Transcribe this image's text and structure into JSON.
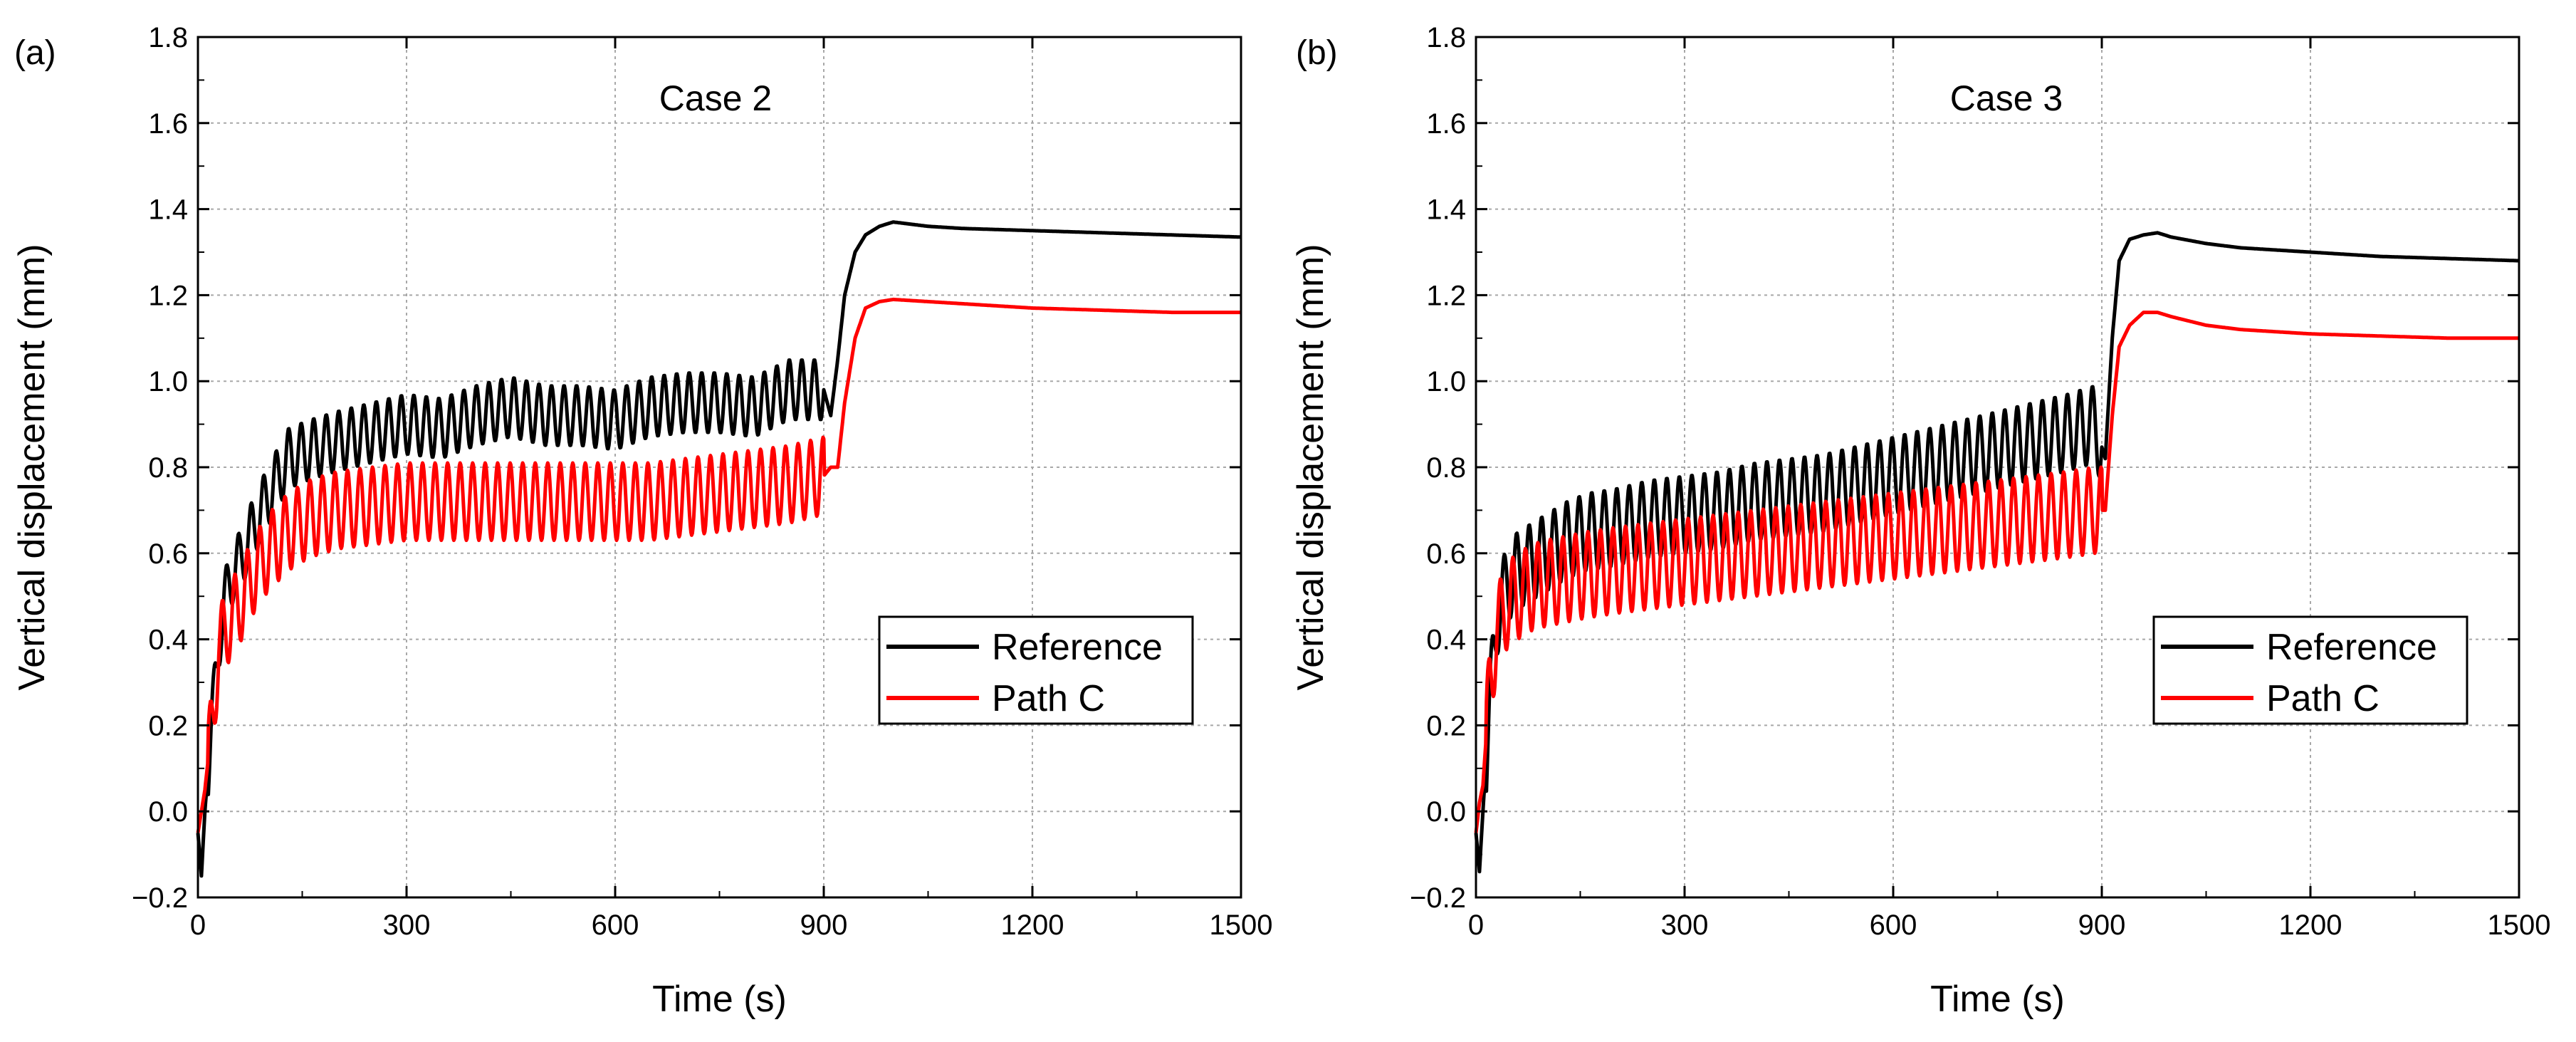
{
  "chart_data": [
    {
      "type": "line",
      "panel_label": "(a)",
      "annotation": "Case 2",
      "xlabel": "Time (s)",
      "ylabel": "Vertical displacement (mm)",
      "xlim": [
        0,
        1500
      ],
      "ylim": [
        -0.2,
        1.8
      ],
      "xticks": [
        0,
        300,
        600,
        900,
        1200,
        1500
      ],
      "yticks": [
        -0.2,
        0.0,
        0.2,
        0.4,
        0.6,
        0.8,
        1.0,
        1.2,
        1.4,
        1.6,
        1.8
      ],
      "ytick_labels": [
        "−0.2",
        "0.0",
        "0.2",
        "0.4",
        "0.6",
        "0.8",
        "1.0",
        "1.2",
        "1.4",
        "1.6",
        "1.8"
      ],
      "grid": true,
      "legend_position": "lower-right",
      "series": [
        {
          "name": "Reference",
          "color": "#000000",
          "x": [
            0,
            5,
            10,
            20,
            30,
            45,
            60,
            80,
            100,
            130,
            160,
            200,
            250,
            300,
            350,
            400,
            450,
            500,
            550,
            600,
            650,
            700,
            750,
            800,
            850,
            900,
            910,
            920,
            930,
            945,
            960,
            980,
            1000,
            1050,
            1100,
            1200,
            1300,
            1400,
            1500
          ],
          "y": [
            -0.05,
            -0.15,
            0.0,
            0.2,
            0.4,
            0.54,
            0.58,
            0.66,
            0.73,
            0.82,
            0.84,
            0.86,
            0.88,
            0.9,
            0.89,
            0.92,
            0.94,
            0.92,
            0.92,
            0.91,
            0.94,
            0.95,
            0.95,
            0.94,
            0.98,
            0.98,
            0.92,
            1.05,
            1.2,
            1.3,
            1.34,
            1.36,
            1.37,
            1.36,
            1.355,
            1.35,
            1.345,
            1.34,
            1.335
          ]
        },
        {
          "name": "Path C",
          "color": "#ff0000",
          "x": [
            0,
            5,
            10,
            20,
            30,
            45,
            60,
            80,
            100,
            130,
            160,
            200,
            250,
            300,
            350,
            400,
            450,
            500,
            550,
            600,
            650,
            700,
            750,
            800,
            850,
            900,
            910,
            920,
            930,
            945,
            960,
            980,
            1000,
            1050,
            1100,
            1200,
            1300,
            1400,
            1500
          ],
          "y": [
            -0.05,
            0.0,
            0.05,
            0.2,
            0.38,
            0.44,
            0.48,
            0.55,
            0.6,
            0.65,
            0.68,
            0.7,
            0.71,
            0.72,
            0.72,
            0.72,
            0.72,
            0.72,
            0.72,
            0.72,
            0.72,
            0.73,
            0.74,
            0.75,
            0.76,
            0.78,
            0.8,
            0.8,
            0.95,
            1.1,
            1.17,
            1.185,
            1.19,
            1.185,
            1.18,
            1.17,
            1.165,
            1.16,
            1.16
          ]
        }
      ]
    },
    {
      "type": "line",
      "panel_label": "(b)",
      "annotation": "Case 3",
      "xlabel": "Time (s)",
      "ylabel": "Vertical displacement (mm)",
      "xlim": [
        0,
        1500
      ],
      "ylim": [
        -0.2,
        1.8
      ],
      "xticks": [
        0,
        300,
        600,
        900,
        1200,
        1500
      ],
      "yticks": [
        -0.2,
        0.0,
        0.2,
        0.4,
        0.6,
        0.8,
        1.0,
        1.2,
        1.4,
        1.6,
        1.8
      ],
      "ytick_labels": [
        "−0.2",
        "0.0",
        "0.2",
        "0.4",
        "0.6",
        "0.8",
        "1.0",
        "1.2",
        "1.4",
        "1.6",
        "1.8"
      ],
      "grid": true,
      "legend_position": "lower-right",
      "series": [
        {
          "name": "Reference",
          "color": "#000000",
          "x": [
            0,
            5,
            10,
            20,
            30,
            45,
            60,
            80,
            100,
            130,
            160,
            200,
            250,
            300,
            350,
            400,
            450,
            500,
            550,
            600,
            650,
            700,
            750,
            800,
            850,
            890,
            905,
            915,
            925,
            940,
            960,
            980,
            1000,
            1050,
            1100,
            1200,
            1300,
            1400,
            1500
          ],
          "y": [
            -0.05,
            -0.14,
            0.0,
            0.25,
            0.45,
            0.53,
            0.56,
            0.58,
            0.6,
            0.63,
            0.65,
            0.66,
            0.68,
            0.69,
            0.7,
            0.72,
            0.73,
            0.74,
            0.76,
            0.78,
            0.8,
            0.82,
            0.84,
            0.86,
            0.88,
            0.9,
            0.82,
            1.1,
            1.28,
            1.33,
            1.34,
            1.345,
            1.335,
            1.32,
            1.31,
            1.3,
            1.29,
            1.285,
            1.28
          ]
        },
        {
          "name": "Path C",
          "color": "#ff0000",
          "x": [
            0,
            5,
            10,
            20,
            30,
            45,
            60,
            80,
            100,
            130,
            160,
            200,
            250,
            300,
            350,
            400,
            450,
            500,
            550,
            600,
            650,
            700,
            750,
            800,
            850,
            890,
            905,
            915,
            925,
            940,
            960,
            980,
            1000,
            1050,
            1100,
            1200,
            1300,
            1400,
            1500
          ],
          "y": [
            -0.05,
            0.02,
            0.06,
            0.3,
            0.42,
            0.48,
            0.5,
            0.52,
            0.53,
            0.54,
            0.55,
            0.56,
            0.57,
            0.58,
            0.59,
            0.6,
            0.61,
            0.62,
            0.63,
            0.64,
            0.65,
            0.66,
            0.67,
            0.68,
            0.69,
            0.7,
            0.7,
            0.92,
            1.08,
            1.13,
            1.16,
            1.16,
            1.15,
            1.13,
            1.12,
            1.11,
            1.105,
            1.1,
            1.1
          ]
        }
      ]
    }
  ]
}
